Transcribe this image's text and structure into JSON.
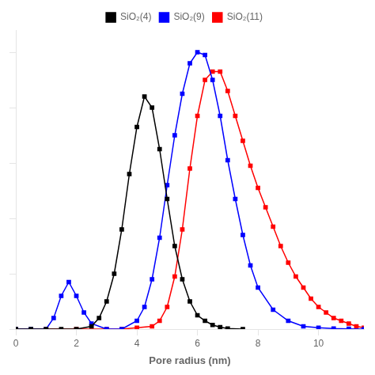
{
  "chart_data": {
    "type": "line",
    "x_label": "Pore radius (nm)",
    "xlim": [
      0,
      11.5
    ],
    "ylim": [
      0,
      1.08
    ],
    "xticks": [
      0,
      2,
      4,
      6,
      8,
      10
    ],
    "yticks": [
      0,
      0.2,
      0.4,
      0.6,
      0.8,
      1.0
    ],
    "tick_labels": "x",
    "grid": false,
    "legend": "top",
    "marker": "square",
    "line_style": "solid",
    "series": [
      {
        "name": "SiO₂(4)",
        "color": "#000000",
        "x": [
          0.0,
          0.5,
          1.0,
          1.5,
          2.0,
          2.5,
          2.75,
          3.0,
          3.25,
          3.5,
          3.75,
          4.0,
          4.25,
          4.5,
          4.75,
          5.0,
          5.25,
          5.5,
          5.75,
          6.0,
          6.25,
          6.5,
          6.75,
          7.0,
          7.5
        ],
        "values": [
          0.0,
          0.0,
          0.0,
          0.0,
          0.0,
          0.01,
          0.04,
          0.1,
          0.2,
          0.36,
          0.56,
          0.73,
          0.84,
          0.8,
          0.65,
          0.47,
          0.3,
          0.18,
          0.1,
          0.05,
          0.03,
          0.015,
          0.007,
          0.002,
          0.0
        ]
      },
      {
        "name": "SiO₂(9)",
        "color": "#0000ff",
        "x": [
          0.0,
          0.5,
          1.0,
          1.25,
          1.5,
          1.75,
          2.0,
          2.25,
          2.5,
          3.0,
          3.5,
          4.0,
          4.25,
          4.5,
          4.75,
          5.0,
          5.25,
          5.5,
          5.75,
          6.0,
          6.25,
          6.5,
          6.75,
          7.0,
          7.25,
          7.5,
          7.75,
          8.0,
          8.5,
          9.0,
          9.5,
          10.0,
          10.5,
          11.0,
          11.5
        ],
        "values": [
          0.0,
          0.0,
          0.0,
          0.04,
          0.12,
          0.17,
          0.12,
          0.06,
          0.02,
          0.0,
          0.0,
          0.03,
          0.08,
          0.18,
          0.33,
          0.52,
          0.7,
          0.85,
          0.96,
          1.0,
          0.99,
          0.9,
          0.77,
          0.61,
          0.47,
          0.34,
          0.23,
          0.15,
          0.07,
          0.03,
          0.01,
          0.005,
          0.002,
          0.001,
          0.0
        ]
      },
      {
        "name": "SiO₂(11)",
        "color": "#ff0000",
        "x": [
          0.0,
          1.0,
          2.0,
          3.0,
          3.5,
          4.0,
          4.5,
          4.75,
          5.0,
          5.25,
          5.5,
          5.75,
          6.0,
          6.25,
          6.5,
          6.75,
          7.0,
          7.25,
          7.5,
          7.75,
          8.0,
          8.25,
          8.5,
          8.75,
          9.0,
          9.25,
          9.5,
          9.75,
          10.0,
          10.25,
          10.5,
          10.75,
          11.0,
          11.25,
          11.5
        ],
        "values": [
          0.0,
          0.0,
          0.0,
          0.0,
          0.0,
          0.005,
          0.01,
          0.03,
          0.08,
          0.19,
          0.36,
          0.58,
          0.77,
          0.9,
          0.93,
          0.93,
          0.86,
          0.77,
          0.68,
          0.59,
          0.51,
          0.44,
          0.37,
          0.3,
          0.24,
          0.19,
          0.15,
          0.11,
          0.08,
          0.06,
          0.04,
          0.03,
          0.02,
          0.01,
          0.005
        ]
      }
    ]
  }
}
